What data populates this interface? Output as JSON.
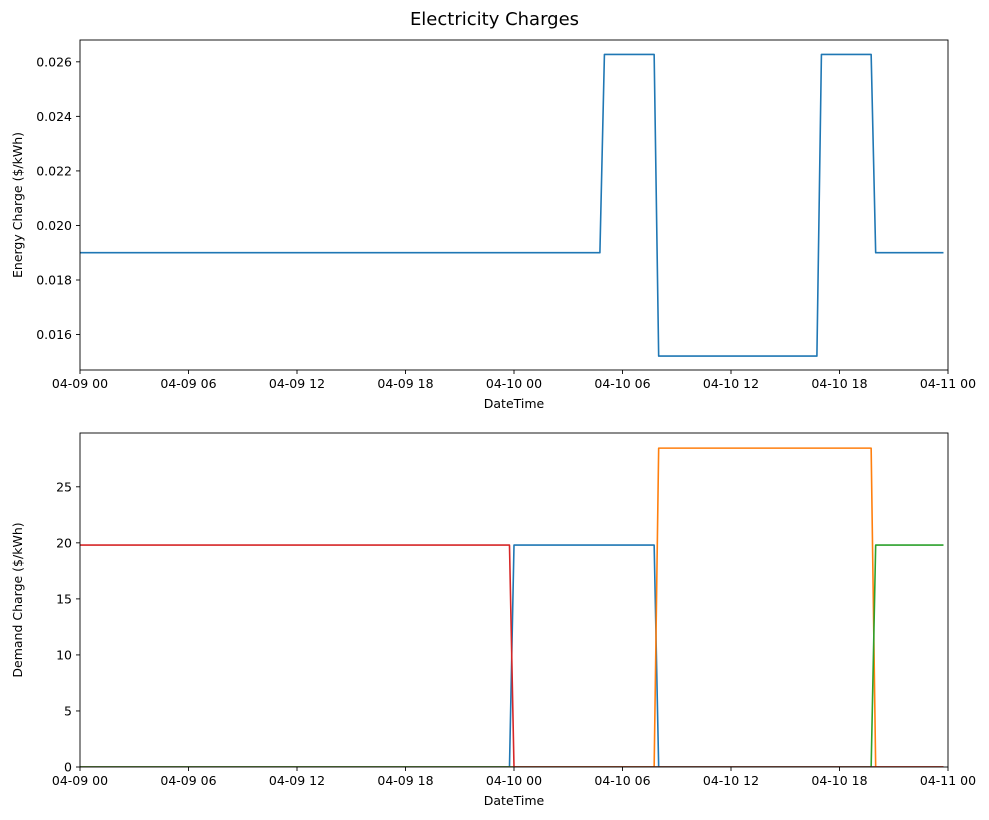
{
  "figure_title": "Electricity Charges",
  "chart_data": [
    {
      "type": "line",
      "title": "",
      "xlabel": "DateTime",
      "ylabel": "Energy Charge ($/kWh)",
      "xlim": [
        "04-09 00:00",
        "04-11 00:00"
      ],
      "ylim": [
        0.0147,
        0.0268
      ],
      "xticks": [
        "04-09 00",
        "04-09 06",
        "04-09 12",
        "04-09 18",
        "04-10 00",
        "04-10 06",
        "04-10 12",
        "04-10 18",
        "04-11 00"
      ],
      "yticks": [
        "0.016",
        "0.018",
        "0.020",
        "0.022",
        "0.024",
        "0.026"
      ],
      "grid": false,
      "legend": "none",
      "series": [
        {
          "color": "#1f77b4",
          "points": [
            [
              "04-09 00:00",
              0.019
            ],
            [
              "04-10 04:45",
              0.019
            ],
            [
              "04-10 05:00",
              0.02627
            ],
            [
              "04-10 07:45",
              0.02627
            ],
            [
              "04-10 08:00",
              0.01521
            ],
            [
              "04-10 16:45",
              0.01521
            ],
            [
              "04-10 17:00",
              0.02627
            ],
            [
              "04-10 19:45",
              0.02627
            ],
            [
              "04-10 20:00",
              0.019
            ],
            [
              "04-10 23:45",
              0.019
            ]
          ]
        }
      ]
    },
    {
      "type": "line",
      "title": "",
      "xlabel": "DateTime",
      "ylabel": "Demand Charge ($/kWh)",
      "xlim": [
        "04-09 00:00",
        "04-11 00:00"
      ],
      "ylim": [
        0,
        29.8
      ],
      "xticks": [
        "04-09 00",
        "04-09 06",
        "04-09 12",
        "04-09 18",
        "04-10 00",
        "04-10 06",
        "04-10 12",
        "04-10 18",
        "04-11 00"
      ],
      "yticks": [
        "0",
        "5",
        "10",
        "15",
        "20",
        "25"
      ],
      "grid": false,
      "legend": "none",
      "series": [
        {
          "color": "#1f77b4",
          "points": [
            [
              "04-09 00:00",
              0
            ],
            [
              "04-09 23:45",
              0
            ],
            [
              "04-10 00:00",
              19.8
            ],
            [
              "04-10 07:45",
              19.8
            ],
            [
              "04-10 08:00",
              0
            ],
            [
              "04-10 23:45",
              0
            ]
          ]
        },
        {
          "color": "#ff7f0e",
          "points": [
            [
              "04-09 00:00",
              0
            ],
            [
              "04-10 07:45",
              0
            ],
            [
              "04-10 08:00",
              28.45
            ],
            [
              "04-10 19:45",
              28.45
            ],
            [
              "04-10 20:00",
              0
            ],
            [
              "04-10 23:45",
              0
            ]
          ]
        },
        {
          "color": "#2ca02c",
          "points": [
            [
              "04-09 00:00",
              0
            ],
            [
              "04-10 19:45",
              0
            ],
            [
              "04-10 20:00",
              19.8
            ],
            [
              "04-10 23:45",
              19.8
            ]
          ]
        },
        {
          "color": "#d62728",
          "points": [
            [
              "04-09 00:00",
              19.8
            ],
            [
              "04-09 23:45",
              19.8
            ],
            [
              "04-10 00:00",
              0
            ],
            [
              "04-10 23:45",
              0
            ]
          ]
        }
      ]
    }
  ]
}
